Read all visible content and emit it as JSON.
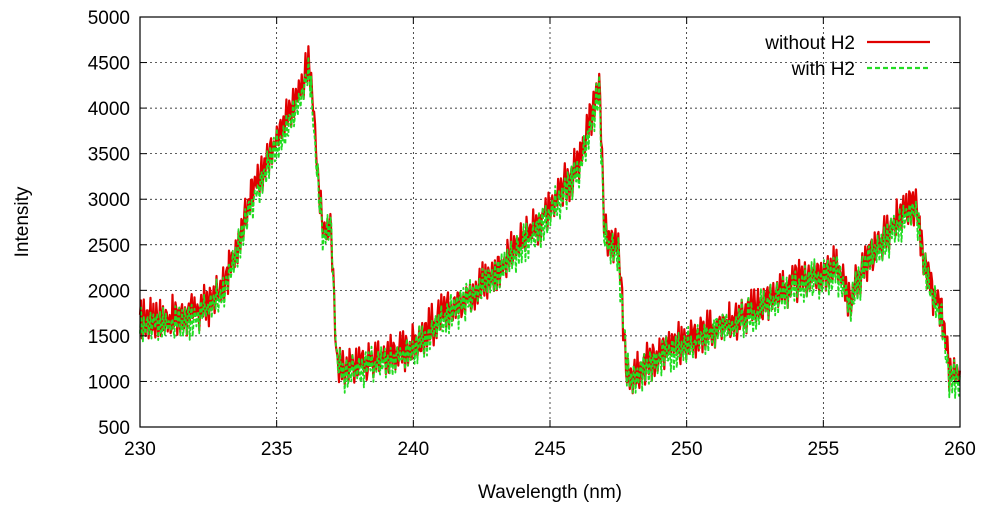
{
  "chart_data": {
    "type": "line",
    "xlabel": "Wavelength (nm)",
    "ylabel": "Intensity",
    "xlim": [
      230,
      260
    ],
    "ylim": [
      500,
      5000
    ],
    "xticks": [
      230,
      235,
      240,
      245,
      250,
      255,
      260
    ],
    "yticks": [
      500,
      1000,
      1500,
      2000,
      2500,
      3000,
      3500,
      4000,
      4500,
      5000
    ],
    "grid": true,
    "legend_position": "top-right",
    "series": [
      {
        "name": "without H2",
        "color": "#e00000",
        "style": "solid",
        "noise_amplitude": 260,
        "envelope": [
          [
            230.0,
            1650
          ],
          [
            230.5,
            1700
          ],
          [
            231.0,
            1680
          ],
          [
            231.5,
            1720
          ],
          [
            232.0,
            1750
          ],
          [
            232.5,
            1850
          ],
          [
            233.0,
            2000
          ],
          [
            233.5,
            2450
          ],
          [
            234.0,
            3000
          ],
          [
            234.5,
            3350
          ],
          [
            235.0,
            3650
          ],
          [
            235.5,
            3950
          ],
          [
            236.0,
            4300
          ],
          [
            236.2,
            4550
          ],
          [
            236.5,
            3300
          ],
          [
            236.7,
            2650
          ],
          [
            237.0,
            2700
          ],
          [
            237.2,
            1200
          ],
          [
            237.5,
            1150
          ],
          [
            238.0,
            1200
          ],
          [
            239.0,
            1280
          ],
          [
            240.0,
            1400
          ],
          [
            241.0,
            1700
          ],
          [
            242.0,
            1950
          ],
          [
            243.0,
            2200
          ],
          [
            244.0,
            2550
          ],
          [
            245.0,
            2900
          ],
          [
            246.0,
            3350
          ],
          [
            246.5,
            3900
          ],
          [
            246.8,
            4300
          ],
          [
            247.0,
            2600
          ],
          [
            247.5,
            2450
          ],
          [
            247.8,
            1150
          ],
          [
            248.0,
            1100
          ],
          [
            249.0,
            1300
          ],
          [
            250.0,
            1450
          ],
          [
            251.0,
            1600
          ],
          [
            252.0,
            1700
          ],
          [
            253.0,
            1900
          ],
          [
            254.0,
            2100
          ],
          [
            255.0,
            2200
          ],
          [
            255.5,
            2250
          ],
          [
            256.0,
            1900
          ],
          [
            256.5,
            2300
          ],
          [
            257.0,
            2500
          ],
          [
            257.5,
            2700
          ],
          [
            258.0,
            2850
          ],
          [
            258.4,
            2950
          ],
          [
            258.7,
            2300
          ],
          [
            259.0,
            1950
          ],
          [
            259.3,
            1800
          ],
          [
            259.6,
            1100
          ],
          [
            260.0,
            1050
          ]
        ]
      },
      {
        "name": "with H2",
        "color": "#22dd22",
        "style": "dashed",
        "noise_amplitude": 250,
        "envelope": [
          [
            230.0,
            1600
          ],
          [
            230.5,
            1650
          ],
          [
            231.0,
            1620
          ],
          [
            231.5,
            1660
          ],
          [
            232.0,
            1700
          ],
          [
            232.5,
            1800
          ],
          [
            233.0,
            1950
          ],
          [
            233.5,
            2350
          ],
          [
            234.0,
            2900
          ],
          [
            234.5,
            3250
          ],
          [
            235.0,
            3550
          ],
          [
            235.5,
            3850
          ],
          [
            236.0,
            4200
          ],
          [
            236.2,
            4400
          ],
          [
            236.5,
            3200
          ],
          [
            236.7,
            2600
          ],
          [
            237.0,
            2650
          ],
          [
            237.2,
            1150
          ],
          [
            237.5,
            1100
          ],
          [
            238.0,
            1150
          ],
          [
            239.0,
            1230
          ],
          [
            240.0,
            1350
          ],
          [
            241.0,
            1650
          ],
          [
            242.0,
            1900
          ],
          [
            243.0,
            2150
          ],
          [
            244.0,
            2480
          ],
          [
            245.0,
            2820
          ],
          [
            246.0,
            3250
          ],
          [
            246.5,
            3800
          ],
          [
            246.8,
            4150
          ],
          [
            247.0,
            2550
          ],
          [
            247.5,
            2400
          ],
          [
            247.8,
            1100
          ],
          [
            248.0,
            1050
          ],
          [
            249.0,
            1250
          ],
          [
            250.0,
            1400
          ],
          [
            251.0,
            1550
          ],
          [
            252.0,
            1650
          ],
          [
            253.0,
            1850
          ],
          [
            254.0,
            2050
          ],
          [
            255.0,
            2150
          ],
          [
            255.5,
            2200
          ],
          [
            256.0,
            1850
          ],
          [
            256.5,
            2250
          ],
          [
            257.0,
            2450
          ],
          [
            257.5,
            2620
          ],
          [
            258.0,
            2780
          ],
          [
            258.4,
            2880
          ],
          [
            258.7,
            2250
          ],
          [
            259.0,
            1900
          ],
          [
            259.3,
            1750
          ],
          [
            259.6,
            1050
          ],
          [
            260.0,
            1000
          ]
        ]
      }
    ]
  }
}
